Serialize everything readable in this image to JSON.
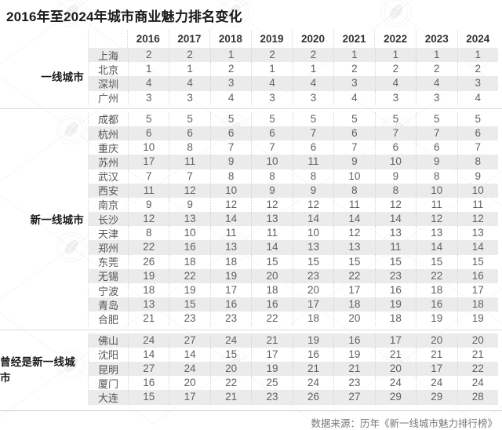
{
  "title": "2016年至2024年城市商业魅力排名变化",
  "source": "数据来源：历年《新一线城市魅力排行榜》",
  "colors": {
    "shaded_row": "#ebebeb",
    "separator_dotted": "#d6d6d6",
    "group_separator": "#dddddd",
    "footer_line": "#cccccc",
    "title_text": "#1a1a1a",
    "cell_text": "#616161",
    "source_text": "#787878"
  },
  "watermark_icon": "leaf-logo-icon",
  "chart_data": {
    "type": "table",
    "title": "2016年至2024年城市商业魅力排名变化",
    "columns": [
      "2016",
      "2017",
      "2018",
      "2019",
      "2020",
      "2021",
      "2022",
      "2023",
      "2024"
    ],
    "groups": [
      {
        "label": "一线城市",
        "rows": [
          {
            "city": "上海",
            "values": [
              2,
              2,
              1,
              2,
              2,
              1,
              1,
              1,
              1
            ]
          },
          {
            "city": "北京",
            "values": [
              1,
              1,
              2,
              1,
              1,
              2,
              2,
              2,
              2
            ]
          },
          {
            "city": "深圳",
            "values": [
              4,
              4,
              3,
              4,
              4,
              3,
              4,
              4,
              3
            ]
          },
          {
            "city": "广州",
            "values": [
              3,
              3,
              4,
              3,
              3,
              4,
              3,
              3,
              4
            ]
          }
        ]
      },
      {
        "label": "新一线城市",
        "rows": [
          {
            "city": "成都",
            "values": [
              5,
              5,
              5,
              5,
              5,
              5,
              5,
              5,
              5
            ]
          },
          {
            "city": "杭州",
            "values": [
              6,
              6,
              6,
              6,
              7,
              6,
              7,
              7,
              6
            ]
          },
          {
            "city": "重庆",
            "values": [
              10,
              8,
              7,
              7,
              6,
              7,
              6,
              6,
              7
            ]
          },
          {
            "city": "苏州",
            "values": [
              17,
              11,
              9,
              10,
              11,
              9,
              10,
              9,
              8
            ]
          },
          {
            "city": "武汉",
            "values": [
              7,
              7,
              8,
              8,
              8,
              10,
              9,
              8,
              9
            ]
          },
          {
            "city": "西安",
            "values": [
              11,
              12,
              10,
              9,
              9,
              8,
              8,
              10,
              10
            ]
          },
          {
            "city": "南京",
            "values": [
              9,
              9,
              12,
              12,
              12,
              11,
              12,
              11,
              11
            ]
          },
          {
            "city": "长沙",
            "values": [
              12,
              13,
              14,
              13,
              14,
              14,
              14,
              12,
              12
            ]
          },
          {
            "city": "天津",
            "values": [
              8,
              10,
              11,
              11,
              10,
              12,
              13,
              13,
              13
            ]
          },
          {
            "city": "郑州",
            "values": [
              22,
              16,
              13,
              14,
              13,
              13,
              11,
              14,
              14
            ]
          },
          {
            "city": "东莞",
            "values": [
              26,
              18,
              18,
              15,
              15,
              15,
              15,
              15,
              15
            ]
          },
          {
            "city": "无锡",
            "values": [
              19,
              22,
              19,
              20,
              23,
              22,
              23,
              22,
              16
            ]
          },
          {
            "city": "宁波",
            "values": [
              18,
              19,
              17,
              18,
              20,
              17,
              16,
              18,
              17
            ]
          },
          {
            "city": "青岛",
            "values": [
              13,
              15,
              16,
              16,
              17,
              18,
              19,
              16,
              18
            ]
          },
          {
            "city": "合肥",
            "values": [
              21,
              23,
              23,
              22,
              18,
              20,
              18,
              19,
              19
            ]
          }
        ]
      },
      {
        "label": "曾经是新一线城市",
        "rows": [
          {
            "city": "佛山",
            "values": [
              24,
              27,
              24,
              21,
              19,
              16,
              17,
              20,
              20
            ]
          },
          {
            "city": "沈阳",
            "values": [
              14,
              14,
              15,
              17,
              16,
              19,
              21,
              21,
              21
            ]
          },
          {
            "city": "昆明",
            "values": [
              27,
              24,
              20,
              19,
              21,
              21,
              20,
              17,
              22
            ]
          },
          {
            "city": "厦门",
            "values": [
              16,
              20,
              22,
              25,
              24,
              23,
              24,
              24,
              24
            ]
          },
          {
            "city": "大连",
            "values": [
              15,
              17,
              21,
              23,
              26,
              27,
              29,
              29,
              28
            ]
          }
        ]
      }
    ]
  }
}
